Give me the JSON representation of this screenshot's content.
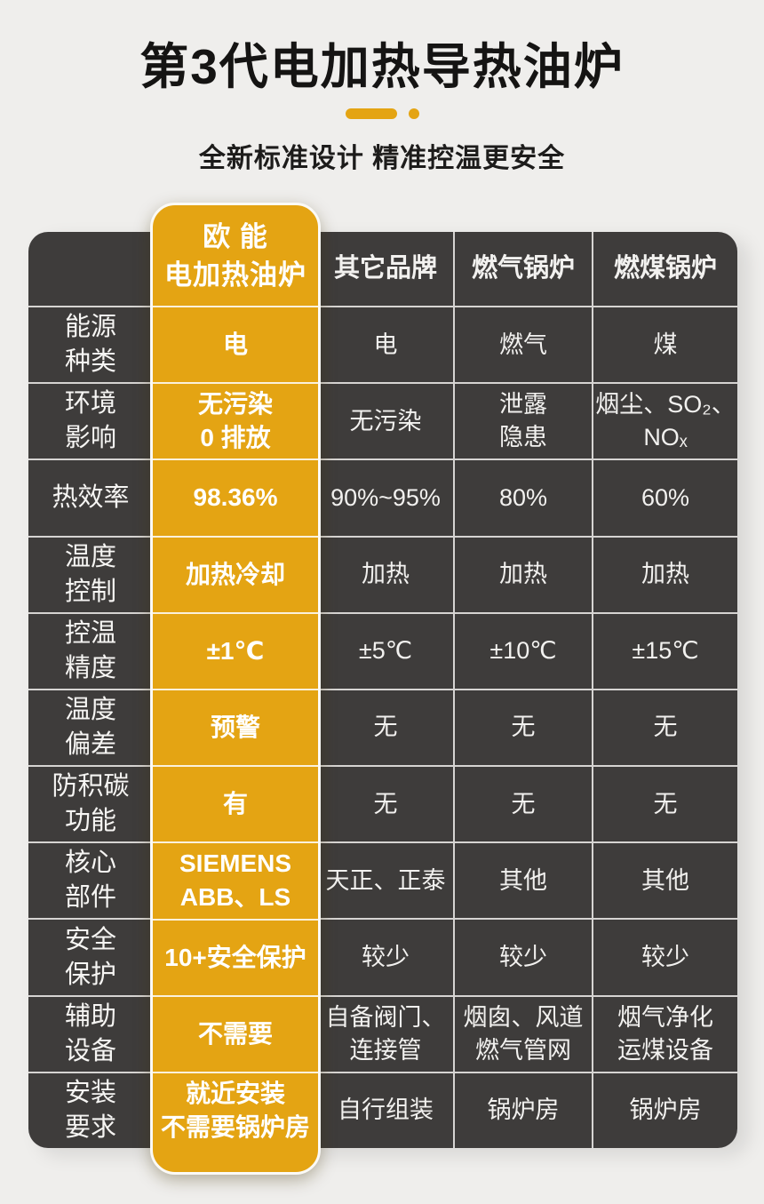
{
  "colors": {
    "accent": "#e4a413",
    "table_bg": "#3e3c3b",
    "page_bg": "#efeeec",
    "grid_line": "#d6d4d2"
  },
  "page": {
    "title": "第3代电加热导热油炉",
    "subtitle": "全新标准设计 精准控温更安全"
  },
  "table": {
    "brand_header_lines": [
      "欧  能",
      "电加热油炉"
    ],
    "column_headers": [
      "其它品牌",
      "燃气锅炉",
      "燃煤锅炉"
    ],
    "rows": [
      {
        "label": [
          "能源",
          "种类"
        ],
        "brand": [
          "电"
        ],
        "others": [
          [
            "电"
          ],
          [
            "燃气"
          ],
          [
            "煤"
          ]
        ]
      },
      {
        "label": [
          "环境",
          "影响"
        ],
        "brand": [
          "无污染",
          "0 排放"
        ],
        "others": [
          [
            "无污染"
          ],
          [
            "泄露",
            "隐患"
          ],
          [
            "烟尘、SO₂、",
            "NOₓ"
          ]
        ]
      },
      {
        "label": [
          "热效率"
        ],
        "brand": [
          "98.36%"
        ],
        "others": [
          [
            "90%~95%"
          ],
          [
            "80%"
          ],
          [
            "60%"
          ]
        ]
      },
      {
        "label": [
          "温度",
          "控制"
        ],
        "brand": [
          "加热冷却"
        ],
        "others": [
          [
            "加热"
          ],
          [
            "加热"
          ],
          [
            "加热"
          ]
        ]
      },
      {
        "label": [
          "控温",
          "精度"
        ],
        "brand": [
          "±1℃"
        ],
        "others": [
          [
            "±5℃"
          ],
          [
            "±10℃"
          ],
          [
            "±15℃"
          ]
        ]
      },
      {
        "label": [
          "温度",
          "偏差"
        ],
        "brand": [
          "预警"
        ],
        "others": [
          [
            "无"
          ],
          [
            "无"
          ],
          [
            "无"
          ]
        ]
      },
      {
        "label": [
          "防积碳",
          "功能"
        ],
        "brand": [
          "有"
        ],
        "others": [
          [
            "无"
          ],
          [
            "无"
          ],
          [
            "无"
          ]
        ]
      },
      {
        "label": [
          "核心",
          "部件"
        ],
        "brand": [
          "SIEMENS",
          "ABB、LS"
        ],
        "others": [
          [
            "天正、正泰"
          ],
          [
            "其他"
          ],
          [
            "其他"
          ]
        ]
      },
      {
        "label": [
          "安全",
          "保护"
        ],
        "brand": [
          "10+安全保护"
        ],
        "others": [
          [
            "较少"
          ],
          [
            "较少"
          ],
          [
            "较少"
          ]
        ]
      },
      {
        "label": [
          "辅助",
          "设备"
        ],
        "brand": [
          "不需要"
        ],
        "others": [
          [
            "自备阀门、",
            "连接管"
          ],
          [
            "烟囱、风道",
            "燃气管网"
          ],
          [
            "烟气净化",
            "运煤设备"
          ]
        ]
      },
      {
        "label": [
          "安装",
          "要求"
        ],
        "brand": [
          "就近安装",
          "不需要锅炉房"
        ],
        "others": [
          [
            "自行组装"
          ],
          [
            "锅炉房"
          ],
          [
            "锅炉房"
          ]
        ]
      }
    ]
  }
}
